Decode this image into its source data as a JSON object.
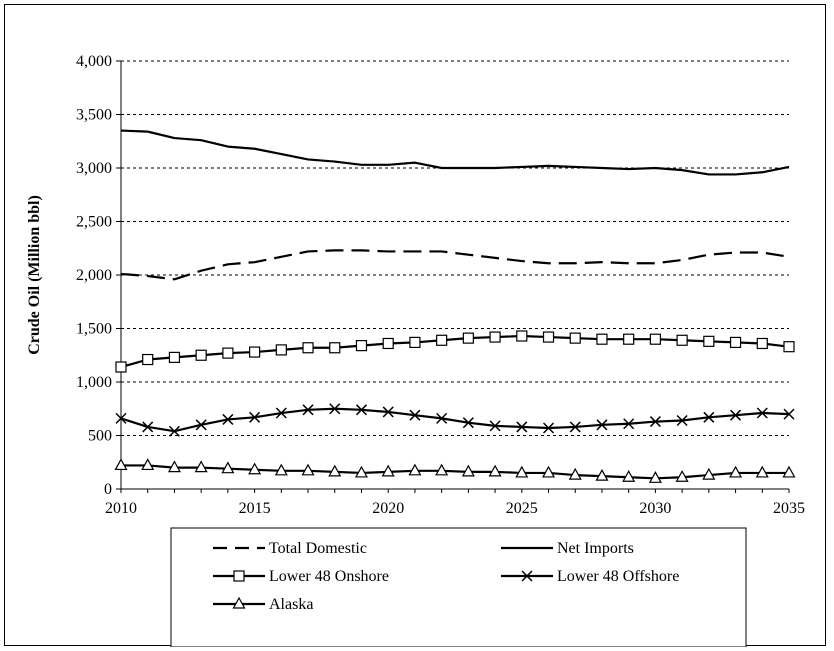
{
  "chart_data": {
    "type": "line",
    "title": "",
    "xlabel": "",
    "ylabel": "Crude Oil (Million bbl)",
    "x": [
      2010,
      2011,
      2012,
      2013,
      2014,
      2015,
      2016,
      2017,
      2018,
      2019,
      2020,
      2021,
      2022,
      2023,
      2024,
      2025,
      2026,
      2027,
      2028,
      2029,
      2030,
      2031,
      2032,
      2033,
      2034,
      2035
    ],
    "xlim": [
      2010,
      2035
    ],
    "ylim": [
      0,
      4000
    ],
    "x_ticks": [
      "2010",
      "2015",
      "2020",
      "2025",
      "2030",
      "2035"
    ],
    "x_tick_values": [
      2010,
      2015,
      2020,
      2025,
      2030,
      2035
    ],
    "y_ticks": [
      "0",
      "500",
      "1,000",
      "1,500",
      "2,000",
      "2,500",
      "3,000",
      "3,500",
      "4,000"
    ],
    "y_tick_values": [
      0,
      500,
      1000,
      1500,
      2000,
      2500,
      3000,
      3500,
      4000
    ],
    "grid": "horizontal dashed",
    "legend_position": "bottom",
    "series": [
      {
        "name": "Total Domestic",
        "style": "dashed",
        "marker": "none",
        "values": [
          2010,
          1990,
          1960,
          2040,
          2100,
          2120,
          2170,
          2220,
          2230,
          2230,
          2220,
          2220,
          2220,
          2190,
          2160,
          2130,
          2110,
          2110,
          2120,
          2110,
          2110,
          2140,
          2190,
          2210,
          2210,
          2170
        ]
      },
      {
        "name": "Net Imports",
        "style": "solid",
        "marker": "none",
        "values": [
          3350,
          3340,
          3280,
          3260,
          3200,
          3180,
          3130,
          3080,
          3060,
          3030,
          3030,
          3050,
          3000,
          3000,
          3000,
          3010,
          3020,
          3010,
          3000,
          2990,
          3000,
          2980,
          2940,
          2940,
          2960,
          3010
        ]
      },
      {
        "name": "Lower 48 Onshore",
        "style": "solid",
        "marker": "square",
        "values": [
          1140,
          1210,
          1230,
          1250,
          1270,
          1280,
          1300,
          1320,
          1320,
          1340,
          1360,
          1370,
          1390,
          1410,
          1420,
          1430,
          1420,
          1410,
          1400,
          1400,
          1400,
          1390,
          1380,
          1370,
          1360,
          1330
        ]
      },
      {
        "name": "Lower 48 Offshore",
        "style": "solid",
        "marker": "x",
        "values": [
          660,
          580,
          540,
          600,
          650,
          670,
          710,
          740,
          750,
          740,
          720,
          690,
          660,
          620,
          590,
          580,
          570,
          580,
          600,
          610,
          630,
          640,
          670,
          690,
          710,
          700
        ]
      },
      {
        "name": "Alaska",
        "style": "solid",
        "marker": "triangle",
        "values": [
          220,
          220,
          200,
          200,
          190,
          180,
          170,
          170,
          160,
          150,
          160,
          170,
          170,
          160,
          160,
          150,
          150,
          130,
          120,
          110,
          100,
          110,
          130,
          150,
          150,
          150
        ]
      }
    ]
  }
}
